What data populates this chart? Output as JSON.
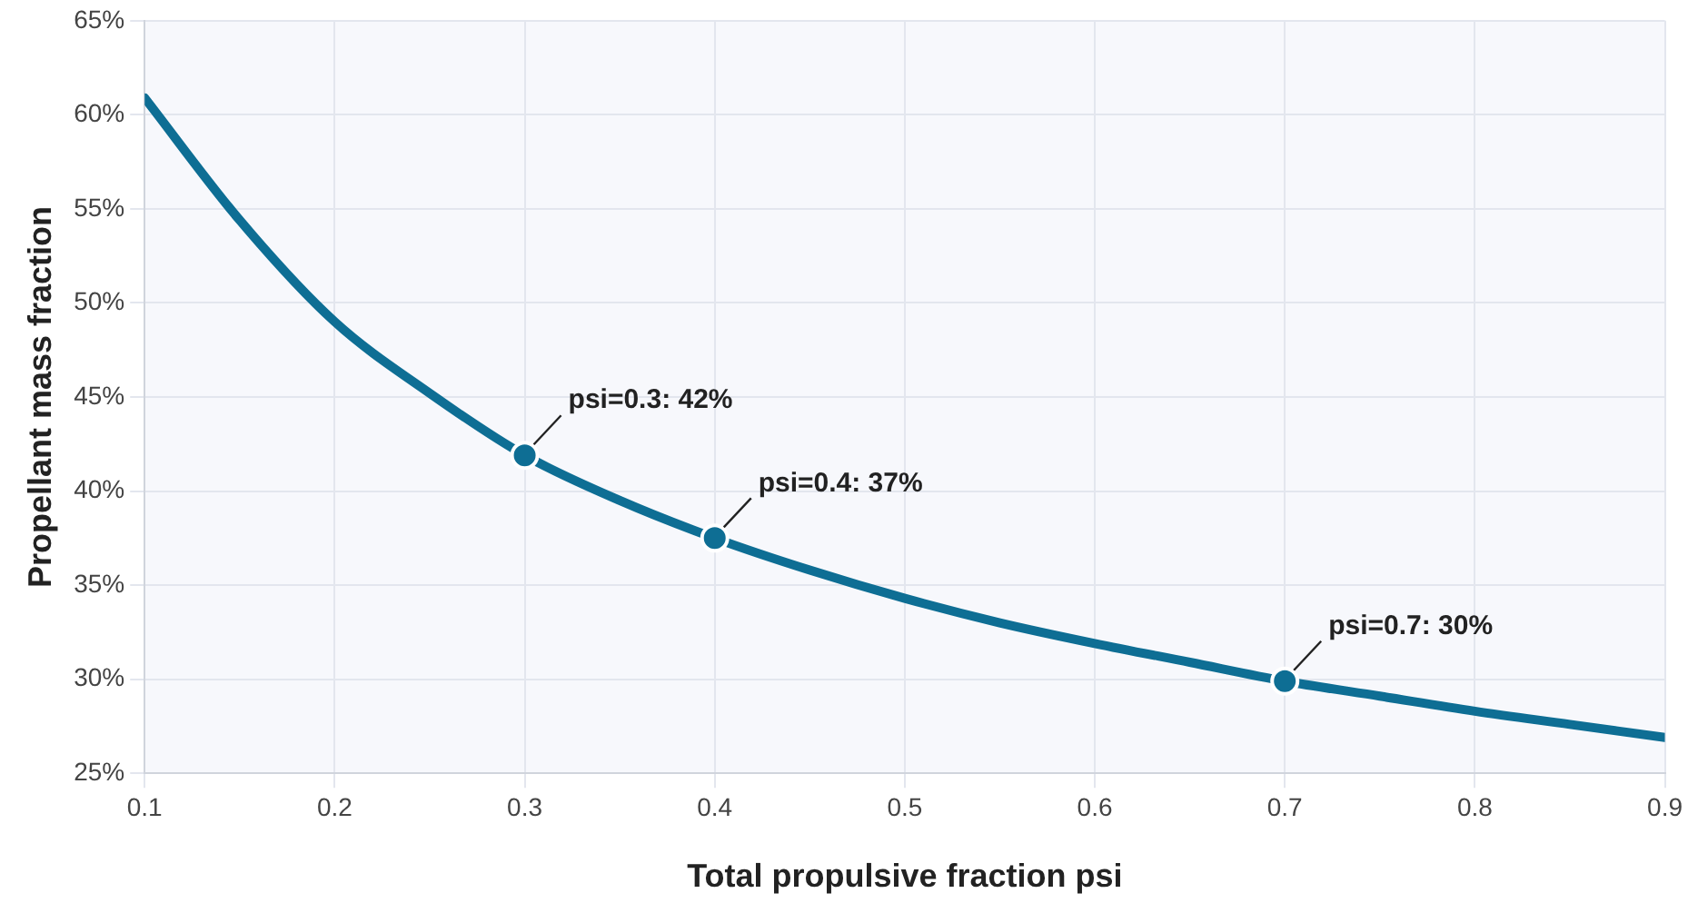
{
  "chart_data": {
    "type": "line",
    "xlabel": "Total propulsive fraction psi",
    "ylabel": "Propellant mass fraction",
    "xlim": [
      0.1,
      0.9
    ],
    "ylim": [
      25,
      65
    ],
    "xticks": [
      0.1,
      0.2,
      0.3,
      0.4,
      0.5,
      0.6,
      0.7,
      0.8,
      0.9
    ],
    "yticks": [
      {
        "value": 25,
        "label": "25%"
      },
      {
        "value": 30,
        "label": "30%"
      },
      {
        "value": 35,
        "label": "35%"
      },
      {
        "value": 40,
        "label": "40%"
      },
      {
        "value": 45,
        "label": "45%"
      },
      {
        "value": 50,
        "label": "50%"
      },
      {
        "value": 55,
        "label": "55%"
      },
      {
        "value": 60,
        "label": "60%"
      },
      {
        "value": 65,
        "label": "65%"
      }
    ],
    "grid": true,
    "legend": false,
    "series": [
      {
        "type": "line",
        "color": "#0e6e94",
        "marker": "none",
        "line_style": "solid",
        "x": [
          0.1,
          0.15,
          0.2,
          0.25,
          0.3,
          0.35,
          0.4,
          0.45,
          0.5,
          0.55,
          0.6,
          0.65,
          0.7,
          0.75,
          0.8,
          0.85,
          0.9
        ],
        "values": [
          60.9,
          54.4,
          49.0,
          45.2,
          41.9,
          39.5,
          37.5,
          35.8,
          34.3,
          33.0,
          31.9,
          30.9,
          29.9,
          29.1,
          28.3,
          27.6,
          26.9
        ]
      },
      {
        "type": "scatter",
        "color": "#0e6e94",
        "marker": "circle",
        "x": [
          0.3,
          0.4,
          0.7
        ],
        "values": [
          41.9,
          37.5,
          29.9
        ]
      }
    ],
    "annotations": [
      {
        "text": "psi=0.3: 42%",
        "x": 0.3,
        "y": 41.9
      },
      {
        "text": "psi=0.4: 37%",
        "x": 0.4,
        "y": 37.5
      },
      {
        "text": "psi=0.7: 30%",
        "x": 0.7,
        "y": 29.9
      }
    ]
  }
}
